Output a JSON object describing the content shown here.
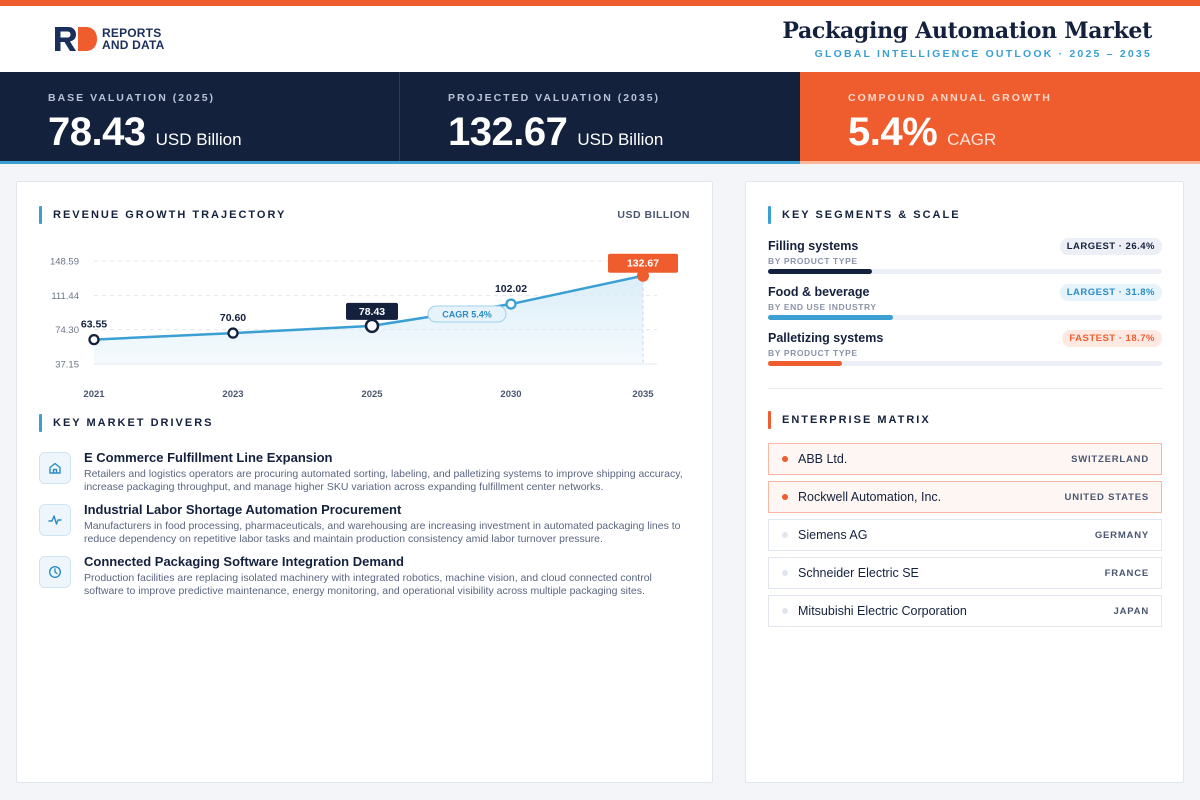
{
  "brand": {
    "line1": "REPORTS",
    "line2": "AND DATA",
    "colors": {
      "orange": "#ef5d2e",
      "navy": "#14213d",
      "blue": "#3a9fd3"
    }
  },
  "header": {
    "title": "Packaging Automation Market",
    "subtitle": "GLOBAL INTELLIGENCE OUTLOOK  ·  2025 – 2035"
  },
  "kpis": [
    {
      "label": "BASE VALUATION (2025)",
      "value": "78.43",
      "unit": "USD Billion"
    },
    {
      "label": "PROJECTED VALUATION (2035)",
      "value": "132.67",
      "unit": "USD Billion"
    },
    {
      "label": "COMPOUND ANNUAL GROWTH",
      "value": "5.4%",
      "unit": "CAGR"
    }
  ],
  "trajectory": {
    "title": "REVENUE GROWTH TRAJECTORY",
    "unit": "USD BILLION",
    "cagr_label": "CAGR 5.4%"
  },
  "chart_data": {
    "type": "area",
    "x": [
      "2021",
      "2023",
      "2025",
      "2030",
      "2035"
    ],
    "values": [
      63.55,
      70.6,
      78.43,
      102.02,
      132.67
    ],
    "data_labels": [
      "63.55",
      "70.60",
      "78.43",
      "102.02",
      "132.67"
    ],
    "y_ticks": [
      "148.59",
      "111.44",
      "74.30",
      "37.15"
    ],
    "y_tick_values": [
      148.59,
      111.44,
      74.3,
      37.15
    ],
    "ylim": [
      37.15,
      148.59
    ],
    "highlight": {
      "base": "2025",
      "projected": "2035"
    },
    "grid": true,
    "colors": {
      "line": "#3a9fd3",
      "fill": "#d9edf8",
      "base": "#14213d",
      "projected": "#ef5d2e"
    },
    "title": "",
    "xlabel": "",
    "ylabel": ""
  },
  "drivers": {
    "title": "KEY MARKET DRIVERS",
    "items": [
      {
        "icon": "home-icon",
        "title": "E Commerce Fulfillment Line Expansion",
        "desc": "Retailers and logistics operators are procuring automated sorting, labeling, and palletizing systems to improve shipping accuracy, increase packaging throughput, and manage higher SKU variation across expanding fulfillment center networks."
      },
      {
        "icon": "activity-icon",
        "title": "Industrial Labor Shortage Automation Procurement",
        "desc": "Manufacturers in food processing, pharmaceuticals, and warehousing are increasing investment in automated packaging lines to reduce dependency on repetitive labor tasks and maintain production consistency amid labor turnover pressure."
      },
      {
        "icon": "clock-icon",
        "title": "Connected Packaging Software Integration Demand",
        "desc": "Production facilities are replacing isolated machinery with integrated robotics, machine vision, and cloud connected control software to improve predictive maintenance, energy monitoring, and operational visibility across multiple packaging sites."
      }
    ]
  },
  "segments": {
    "title": "KEY SEGMENTS & SCALE",
    "items": [
      {
        "name": "Filling systems",
        "category": "BY PRODUCT TYPE",
        "badge": "LARGEST · 26.4%",
        "share": 26.4,
        "color": "#14213d",
        "style": "navy"
      },
      {
        "name": "Food & beverage",
        "category": "BY END USE INDUSTRY",
        "badge": "LARGEST · 31.8%",
        "share": 31.8,
        "color": "#3a9fd3",
        "style": "blue"
      },
      {
        "name": "Palletizing systems",
        "category": "BY PRODUCT TYPE",
        "badge": "FASTEST · 18.7%",
        "share": 18.7,
        "color": "#ef5d2e",
        "style": "orange"
      }
    ]
  },
  "matrix": {
    "title": "ENTERPRISE MATRIX",
    "items": [
      {
        "name": "ABB Ltd.",
        "country": "SWITZERLAND",
        "highlight": true
      },
      {
        "name": "Rockwell Automation, Inc.",
        "country": "UNITED STATES",
        "highlight": true
      },
      {
        "name": "Siemens AG",
        "country": "GERMANY",
        "highlight": false
      },
      {
        "name": "Schneider Electric SE",
        "country": "FRANCE",
        "highlight": false
      },
      {
        "name": "Mitsubishi Electric Corporation",
        "country": "JAPAN",
        "highlight": false
      }
    ]
  }
}
